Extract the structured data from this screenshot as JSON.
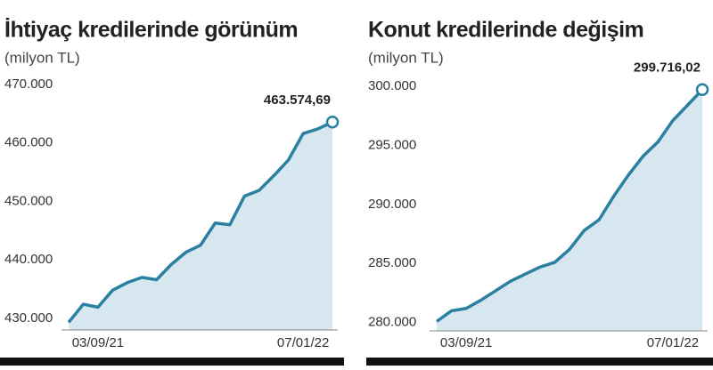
{
  "chart_data": [
    {
      "type": "area",
      "title": "İhtiyaç kredilerinde görünüm",
      "subtitle": "(milyon TL)",
      "color": "#2b7fa1",
      "fill": "#d6e7f0",
      "categories": [
        null,
        null,
        "03/09/21",
        null,
        null,
        null,
        null,
        null,
        null,
        null,
        null,
        null,
        null,
        null,
        null,
        null,
        "07/01/22",
        null,
        null
      ],
      "values": [
        429300,
        432400,
        431900,
        434800,
        436100,
        437000,
        436600,
        439200,
        441300,
        442500,
        446300,
        446000,
        450900,
        451900,
        454400,
        457100,
        461600,
        462400,
        463574.69
      ],
      "value_labels": [
        null,
        null,
        null,
        null,
        null,
        null,
        null,
        null,
        null,
        null,
        null,
        null,
        null,
        null,
        null,
        null,
        null,
        null,
        "463.574,69"
      ],
      "ylim": [
        428000,
        470000
      ],
      "yticks": [
        {
          "value": 430000,
          "label": "430.000"
        },
        {
          "value": 440000,
          "label": "440.000"
        },
        {
          "value": 450000,
          "label": "450.000"
        },
        {
          "value": 460000,
          "label": "460.000"
        },
        {
          "value": 470000,
          "label": "470.000"
        }
      ]
    },
    {
      "type": "area",
      "title": "Konut kredilerinde değişim",
      "subtitle": "(milyon TL)",
      "color": "#2b7fa1",
      "fill": "#d6e7f0",
      "categories": [
        null,
        null,
        "03/09/21",
        null,
        null,
        null,
        null,
        null,
        null,
        null,
        null,
        null,
        null,
        null,
        null,
        null,
        "07/01/22",
        null,
        null
      ],
      "values": [
        280100,
        281000,
        281200,
        281900,
        282700,
        283500,
        284100,
        284700,
        285100,
        286200,
        287800,
        288700,
        290700,
        292500,
        294100,
        295300,
        297100,
        298400,
        299716.02
      ],
      "value_labels": [
        null,
        null,
        null,
        null,
        null,
        null,
        null,
        null,
        null,
        null,
        null,
        null,
        null,
        null,
        null,
        null,
        null,
        null,
        "299.716,02"
      ],
      "ylim": [
        279300,
        300000
      ],
      "yticks": [
        {
          "value": 280000,
          "label": "280.000"
        },
        {
          "value": 285000,
          "label": "285.000"
        },
        {
          "value": 290000,
          "label": "290.000"
        },
        {
          "value": 295000,
          "label": "295.000"
        },
        {
          "value": 300000,
          "label": "300.000"
        }
      ]
    }
  ]
}
